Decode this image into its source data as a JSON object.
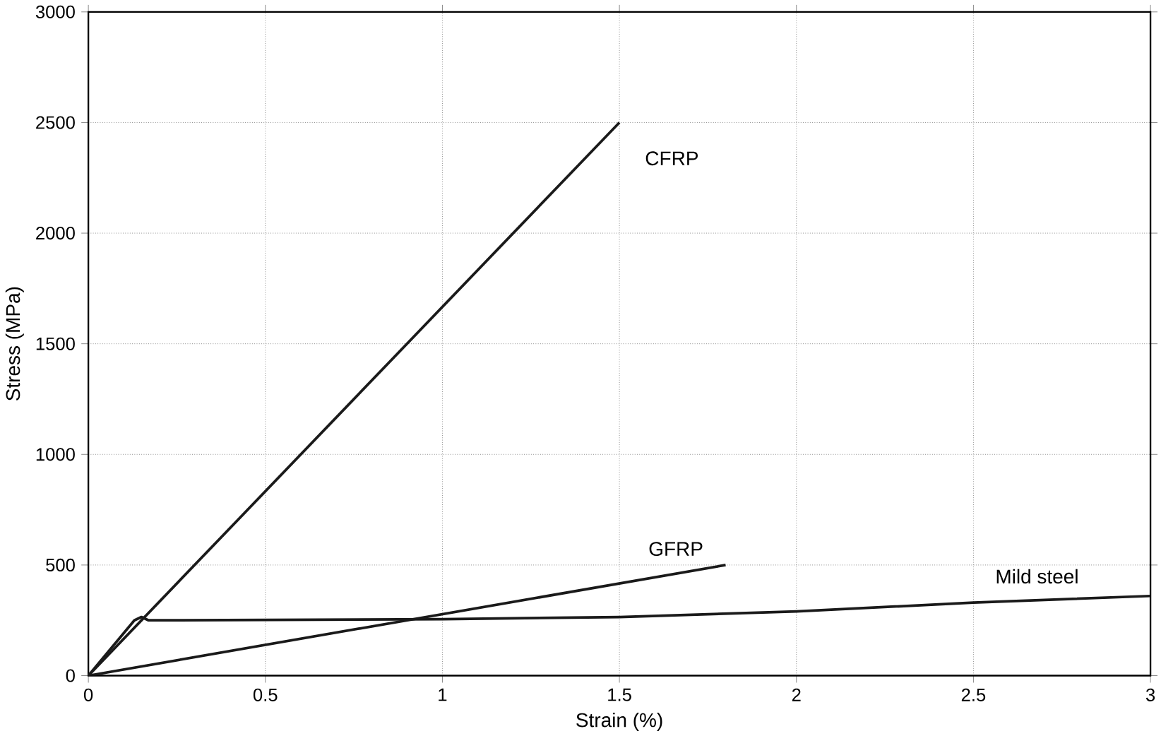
{
  "chart_data": {
    "type": "line",
    "xlabel": "Strain (%)",
    "ylabel": "Stress (MPa)",
    "xlim": [
      0,
      3
    ],
    "ylim": [
      0,
      3000
    ],
    "xticks": [
      0,
      0.5,
      1,
      1.5,
      2,
      2.5,
      3
    ],
    "yticks": [
      0,
      500,
      1000,
      1500,
      2000,
      2500,
      3000
    ],
    "grid": true,
    "marker": "none",
    "line_style": "solid",
    "series": [
      {
        "name": "CFRP",
        "color": "#1a1a1a",
        "x": [
          0,
          1.5
        ],
        "values": [
          0,
          2500
        ]
      },
      {
        "name": "GFRP",
        "color": "#1a1a1a",
        "x": [
          0,
          1.8
        ],
        "values": [
          0,
          500
        ]
      },
      {
        "name": "Mild steel",
        "color": "#1a1a1a",
        "x": [
          0,
          0.13,
          0.15,
          0.17,
          1,
          1.5,
          2,
          2.5,
          3
        ],
        "values": [
          0,
          250,
          265,
          250,
          255,
          265,
          290,
          330,
          360
        ]
      }
    ]
  }
}
